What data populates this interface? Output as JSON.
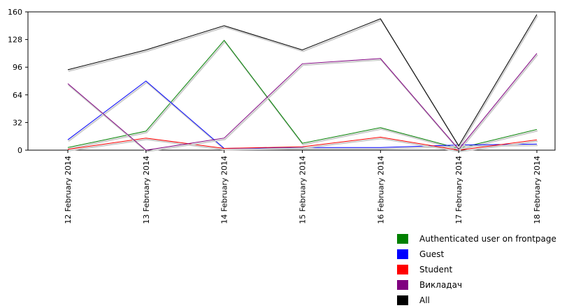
{
  "chart_data": {
    "type": "line",
    "title": "",
    "xlabel": "",
    "ylabel": "",
    "ylim": [
      0,
      160
    ],
    "yticks": [
      0,
      32,
      64,
      96,
      128,
      160
    ],
    "legend_position": "bottom-right",
    "grid": false,
    "categories": [
      "12 February 2014",
      "13 February 2014",
      "14 February 2014",
      "15 February 2014",
      "16 February 2014",
      "17 February 2014",
      "18 February 2014"
    ],
    "series": [
      {
        "name": "Authenticated user on frontpage",
        "color": "#008000",
        "values": [
          3,
          22,
          127,
          8,
          26,
          2,
          24
        ]
      },
      {
        "name": "Guest",
        "color": "#0000ff",
        "values": [
          12,
          80,
          2,
          3,
          3,
          6,
          7
        ]
      },
      {
        "name": "Student",
        "color": "#ff0000",
        "values": [
          1,
          14,
          2,
          4,
          15,
          0,
          12
        ]
      },
      {
        "name": "Викладач",
        "color": "#800080",
        "values": [
          77,
          0,
          14,
          100,
          106,
          1,
          112
        ]
      },
      {
        "name": "All",
        "color": "#000000",
        "values": [
          93,
          116,
          144,
          116,
          152,
          5,
          157
        ]
      }
    ]
  }
}
